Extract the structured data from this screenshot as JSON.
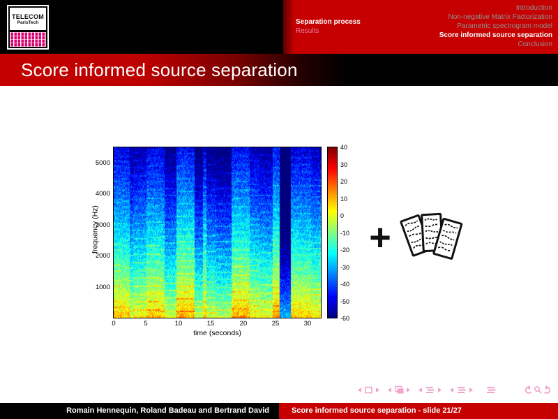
{
  "header": {
    "sections": [
      {
        "label": "Introduction",
        "current": false
      },
      {
        "label": "Non-negative Matrix Factorization",
        "current": false
      },
      {
        "label": "Parametric spectrogram model",
        "current": false
      },
      {
        "label": "Score informed source separation",
        "current": true
      },
      {
        "label": "Conclusion",
        "current": false
      }
    ],
    "subsections": [
      {
        "label": "Separation process",
        "current": true
      },
      {
        "label": "Results",
        "current": false
      }
    ],
    "logo": {
      "line1": "TELECOM",
      "line2": "ParisTech"
    }
  },
  "title_bar": {
    "title": "Score informed source separation"
  },
  "content": {
    "plus_sign": "+",
    "score_icon": "sheet-music-pages-clipart"
  },
  "chart_data": {
    "type": "heatmap",
    "title": "",
    "xlabel": "time (seconds)",
    "ylabel": "frequency (Hz)",
    "x_ticks": [
      0,
      5,
      10,
      15,
      20,
      25,
      30
    ],
    "y_ticks": [
      5000,
      4000,
      3000,
      2000,
      1000
    ],
    "x_range": [
      0,
      32
    ],
    "y_range": [
      0,
      5500
    ],
    "colorbar_ticks": [
      40,
      30,
      20,
      10,
      0,
      -10,
      -20,
      -30,
      -40,
      -50,
      -60
    ],
    "value_range_db": [
      -60,
      40
    ],
    "colormap": "jet",
    "legend_position": "right-colorbar",
    "grid": false,
    "description": "Audio spectrogram of a ~32 s music excerpt: strong red/orange harmonic bands below ~800 Hz, cyan-green mid energy up to ~2500 Hz, blue low energy at high frequency, with dark-blue vertical stripes at note gaps and horizontal harmonic streaks."
  },
  "footer": {
    "authors": "Romain Hennequin, Roland Badeau and Bertrand David",
    "slide_label": "Score informed source separation - slide 21/27"
  },
  "nav": {
    "symbols": [
      "prev-slide",
      "slide",
      "next-slide",
      "prev-frame",
      "frame",
      "next-frame",
      "prev-subsection",
      "subsection",
      "next-subsection",
      "prev-section",
      "section",
      "next-section",
      "presentation",
      "back",
      "find",
      "forward"
    ]
  },
  "colors": {
    "accent_red": "#c60000",
    "logo_magenta": "#d6006e",
    "nav_pink": "#f2a3c9",
    "inactive_gray": "#8f8f8f",
    "inactive_pink": "#e87ba2"
  }
}
